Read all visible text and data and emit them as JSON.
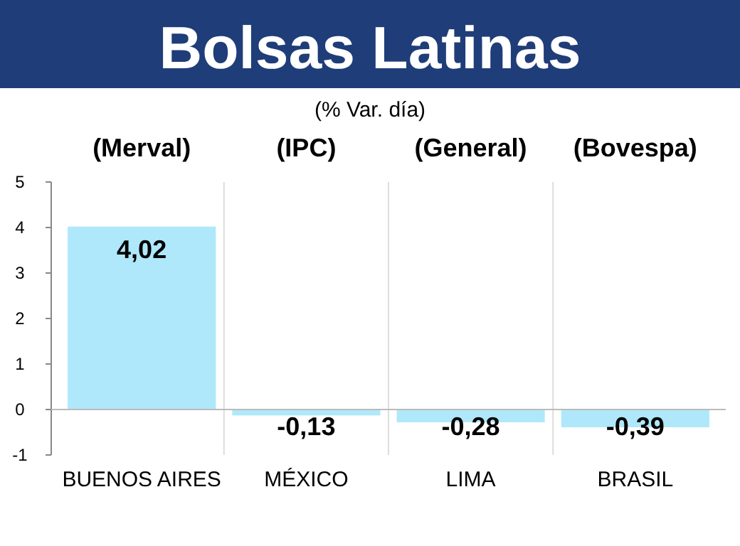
{
  "chart_data": {
    "type": "bar",
    "title": "Bolsas Latinas",
    "subtitle": "(% Var. día)",
    "categories": [
      "BUENOS AIRES",
      "MÉXICO",
      "LIMA",
      "BRASIL"
    ],
    "values": [
      4.02,
      -0.13,
      -0.28,
      -0.39
    ],
    "value_labels": [
      "4,02",
      "-0,13",
      "-0,28",
      "-0,39"
    ],
    "color": "#aee8fa",
    "ylim": [
      -1,
      5
    ],
    "yticks": [
      -1,
      0,
      1,
      2,
      3,
      4,
      5
    ],
    "annotations": [
      "(Merval)",
      "(IPC)",
      "(General)",
      "(Bovespa)"
    ]
  }
}
